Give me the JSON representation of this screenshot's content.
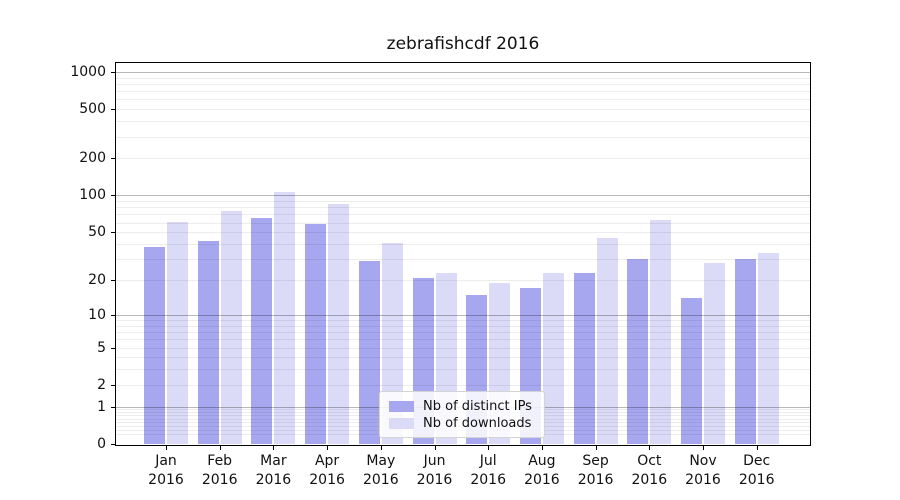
{
  "chart_data": {
    "type": "bar",
    "title": "zebrafishcdf 2016",
    "y_scale": "log1p (y position proportional to log10(1+value))",
    "grid": true,
    "legend_position": "lower center",
    "categories": [
      "Jan",
      "Feb",
      "Mar",
      "Apr",
      "May",
      "Jun",
      "Jul",
      "Aug",
      "Sep",
      "Oct",
      "Nov",
      "Dec"
    ],
    "year_label": "2016",
    "series": [
      {
        "name": "Nb of distinct IPs",
        "color": "#a7a7f0",
        "values": [
          38,
          42,
          65,
          58,
          29,
          21,
          15,
          17,
          23,
          30,
          14,
          30
        ]
      },
      {
        "name": "Nb of downloads",
        "color": "#dbdbf8",
        "values": [
          61,
          75,
          106,
          85,
          41,
          23,
          19,
          23,
          45,
          63,
          28,
          34
        ]
      }
    ],
    "y_ticks": [
      0,
      1,
      2,
      5,
      10,
      20,
      50,
      100,
      200,
      500,
      1000
    ],
    "ylim": [
      0,
      1200
    ],
    "xlabel": "",
    "ylabel": ""
  },
  "colors": {
    "background": "#ffffff",
    "axis": "#000000",
    "grid_major": "#b8b8b8",
    "grid_minor": "#efefef",
    "text": "#111111"
  }
}
